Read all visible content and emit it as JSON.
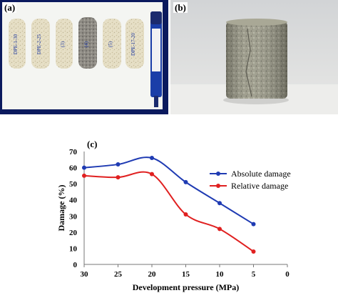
{
  "figure": {
    "panel_a": {
      "label": "(a)",
      "specimen_labels": [
        "DPE-1-30",
        "DPE-2-25",
        "(3)",
        "(4)",
        "(5)",
        "DPE-17-20"
      ],
      "colors": {
        "background": "#0b1a5e",
        "paper": "#f4f5f2",
        "specimen": "#e6dfc6",
        "marker": "#1a3ea8"
      }
    },
    "panel_b": {
      "label": "(b)",
      "colors": {
        "wall": "#dcdcdc",
        "table": "#eeeeee",
        "specimen": "#9b9a88"
      }
    },
    "panel_c": {
      "label": "(c)",
      "legend": [
        "Absolute damage",
        "Relative damage"
      ],
      "colors": {
        "absolute": "#1f3bb3",
        "relative": "#e02020",
        "axis": "#777777"
      }
    }
  },
  "chart_data": {
    "type": "line",
    "x": [
      30,
      25,
      20,
      15,
      10,
      5
    ],
    "series": [
      {
        "name": "Absolute damage",
        "values": [
          60,
          62,
          66,
          51,
          38,
          25
        ]
      },
      {
        "name": "Relative damage",
        "values": [
          55,
          54,
          56,
          31,
          22,
          8
        ]
      }
    ],
    "xlabel": "Development pressure (MPa)",
    "ylabel": "Damage (%)",
    "xlim": [
      30,
      0
    ],
    "ylim": [
      0,
      70
    ],
    "xticks": [
      30,
      25,
      20,
      15,
      10,
      5,
      0
    ],
    "yticks": [
      0,
      10,
      20,
      30,
      40,
      50,
      60,
      70
    ],
    "x_reversed": true,
    "grid": false,
    "legend_position": "top-right"
  }
}
